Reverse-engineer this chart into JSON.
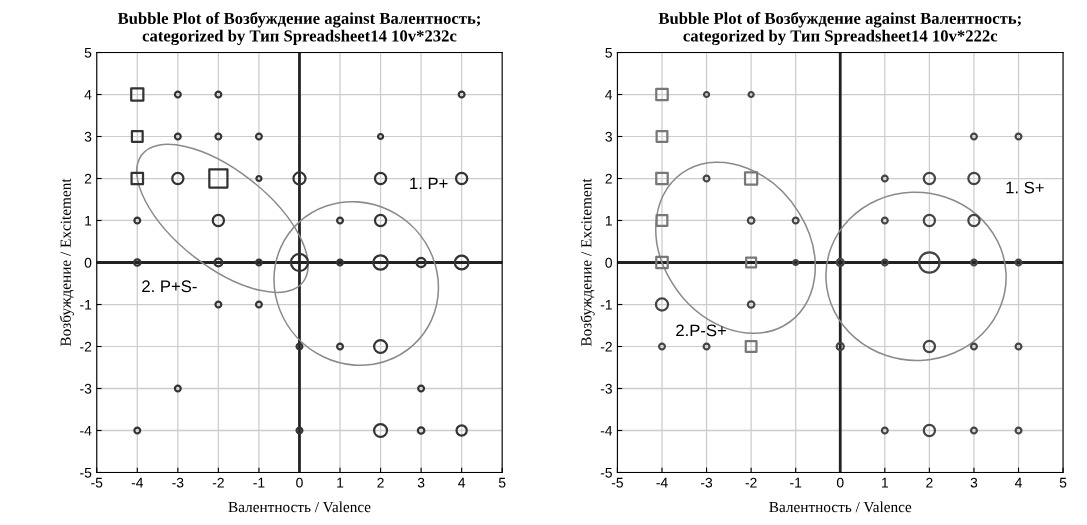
{
  "chart_data": [
    {
      "type": "bubble",
      "title": "Bubble Plot of Возбуждение against Валентность;\ncategorized by Тип Spreadsheet14 10v*232c",
      "xlabel": "Валентность / Valence",
      "ylabel": "Возбуждение / Excitement",
      "xlim": [
        -5,
        5
      ],
      "ylim": [
        -5,
        5
      ],
      "xticks": [
        -5,
        -4,
        -3,
        -2,
        -1,
        0,
        1,
        2,
        3,
        4,
        5
      ],
      "yticks": [
        -5,
        -4,
        -3,
        -2,
        -1,
        0,
        1,
        2,
        3,
        4,
        5
      ],
      "grid": true,
      "annotations": [
        "1. P+",
        "2. P+S-"
      ],
      "series": [
        {
          "marker": "square",
          "color": "#333333",
          "x": [
            -4,
            -4,
            -4,
            -2
          ],
          "values": [
            4,
            3,
            2,
            2
          ],
          "sizes": [
            0.45,
            0.35,
            0.4,
            1
          ]
        },
        {
          "marker": "circle",
          "color": "#333333",
          "x": [
            -3,
            -2,
            -3,
            -2,
            -1,
            -3,
            -1,
            0,
            -2,
            -4,
            -4,
            -2,
            -1,
            0,
            4,
            2,
            2,
            4,
            1,
            2,
            1,
            2,
            3,
            4,
            -2,
            -1,
            0,
            1,
            2,
            -3,
            3,
            -4,
            0,
            2,
            3,
            4
          ],
          "values": [
            4,
            4,
            3,
            3,
            3,
            2,
            2,
            2,
            1,
            1,
            0,
            0,
            0,
            0,
            4,
            3,
            2,
            2,
            1,
            1,
            0,
            0,
            0,
            0,
            -1,
            -1,
            -2,
            -2,
            -2,
            -3,
            -3,
            -4,
            -4,
            -4,
            -4,
            -4
          ],
          "sizes": [
            0.08,
            0.08,
            0.08,
            0.08,
            0.08,
            0.3,
            0.06,
            0.35,
            0.3,
            0.08,
            0.1,
            0.15,
            0.08,
            0.7,
            0.08,
            0.06,
            0.3,
            0.3,
            0.08,
            0.3,
            0.08,
            0.5,
            0.2,
            0.45,
            0.08,
            0.08,
            0.08,
            0.08,
            0.4,
            0.08,
            0.08,
            0.08,
            0.08,
            0.4,
            0.1,
            0.25
          ]
        }
      ]
    },
    {
      "type": "bubble",
      "title": "Bubble Plot of Возбуждение against Валентность;\ncategorized by Тип Spreadsheet14 10v*222c",
      "xlabel": "Валентность / Valence",
      "ylabel": "Возбуждение / Excitement",
      "xlim": [
        -5,
        5
      ],
      "ylim": [
        -5,
        5
      ],
      "xticks": [
        -5,
        -4,
        -3,
        -2,
        -1,
        0,
        1,
        2,
        3,
        4,
        5
      ],
      "yticks": [
        -5,
        -4,
        -3,
        -2,
        -1,
        0,
        1,
        2,
        3,
        4,
        5
      ],
      "grid": true,
      "annotations": [
        "1. S+",
        "2.P-S+"
      ],
      "series": [
        {
          "marker": "square",
          "color": "#777777",
          "x": [
            -4,
            -4,
            -4,
            -4,
            -4,
            -2,
            -2,
            -2
          ],
          "values": [
            4,
            3,
            2,
            1,
            0,
            2,
            0,
            -2
          ],
          "sizes": [
            0.4,
            0.35,
            0.4,
            0.35,
            0.4,
            0.45,
            0.3,
            0.35
          ]
        },
        {
          "marker": "circle",
          "color": "#444444",
          "x": [
            -3,
            -2,
            -3,
            -2,
            -1,
            -4,
            -2,
            -1,
            0,
            -4,
            -3,
            0,
            2,
            2,
            3,
            2,
            3,
            1,
            1,
            3,
            4,
            1,
            3,
            4,
            2,
            3,
            4,
            1,
            2,
            3,
            4
          ],
          "values": [
            4,
            4,
            2,
            1,
            1,
            -1,
            -1,
            0,
            0,
            -2,
            -2,
            -2,
            0,
            2,
            2,
            1,
            1,
            2,
            1,
            3,
            3,
            0,
            0,
            0,
            -2,
            -2,
            -2,
            -4,
            -4,
            -4,
            -4
          ],
          "sizes": [
            0.06,
            0.06,
            0.08,
            0.1,
            0.08,
            0.35,
            0.1,
            0.06,
            0.12,
            0.08,
            0.08,
            0.12,
            1,
            0.3,
            0.3,
            0.3,
            0.3,
            0.08,
            0.08,
            0.08,
            0.08,
            0.08,
            0.08,
            0.08,
            0.3,
            0.08,
            0.08,
            0.08,
            0.3,
            0.08,
            0.08
          ]
        }
      ]
    }
  ]
}
